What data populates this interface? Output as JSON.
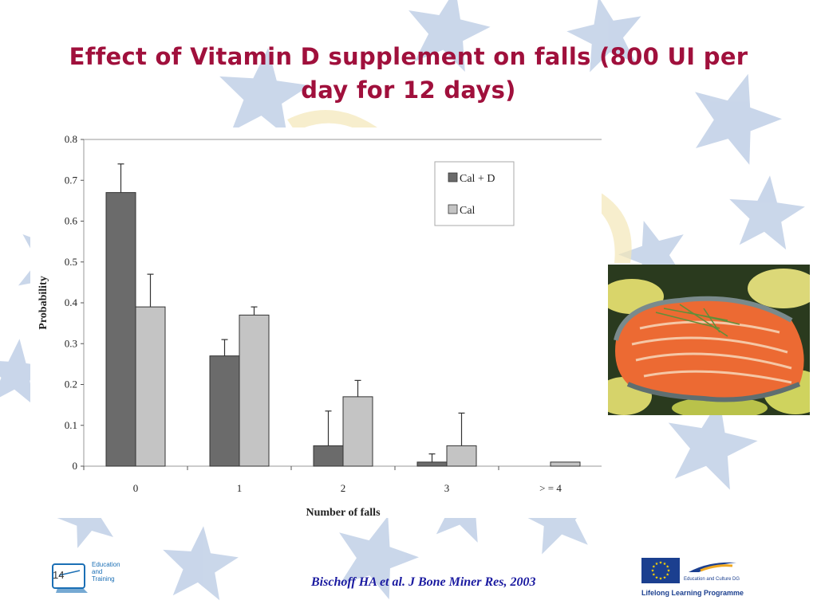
{
  "slide": {
    "title": "Effect of Vitamin D supplement on falls (800 UI per day for 12 days)",
    "citation": "Bischoff HA et al.  J Bone Miner Res, 2003",
    "page_number": "14"
  },
  "logos": {
    "education_training": [
      "Education",
      "and",
      "Training"
    ],
    "education_culture": "Education and Culture DG",
    "lifelong_learning": "Lifelong Learning Programme"
  },
  "photo": {
    "subject": "salmon-steak-with-potatoes-and-rosemary"
  },
  "colors": {
    "title": "#a0103c",
    "series_cal_d": "#6b6b6b",
    "series_cal": "#c4c4c4",
    "stars": "#b8c9e3",
    "citation": "#1a1aa0"
  },
  "chart_data": {
    "type": "bar",
    "title": "",
    "xlabel": "Number of falls",
    "ylabel": "Probability",
    "ylim": [
      0,
      0.8
    ],
    "yticks": [
      "0",
      "0.1",
      "0.2",
      "0.3",
      "0.4",
      "0.5",
      "0.6",
      "0.7",
      "0.8"
    ],
    "categories": [
      "0",
      "1",
      "2",
      "3",
      "> = 4"
    ],
    "series": [
      {
        "name": "Cal + D",
        "values": [
          0.67,
          0.27,
          0.05,
          0.01,
          0.0
        ],
        "error_upper": [
          0.74,
          0.31,
          0.135,
          0.03,
          null
        ]
      },
      {
        "name": "Cal",
        "values": [
          0.39,
          0.37,
          0.17,
          0.05,
          0.01
        ],
        "error_upper": [
          0.47,
          0.39,
          0.21,
          0.13,
          null
        ]
      }
    ],
    "legend_position": "top-right",
    "grid": false
  }
}
